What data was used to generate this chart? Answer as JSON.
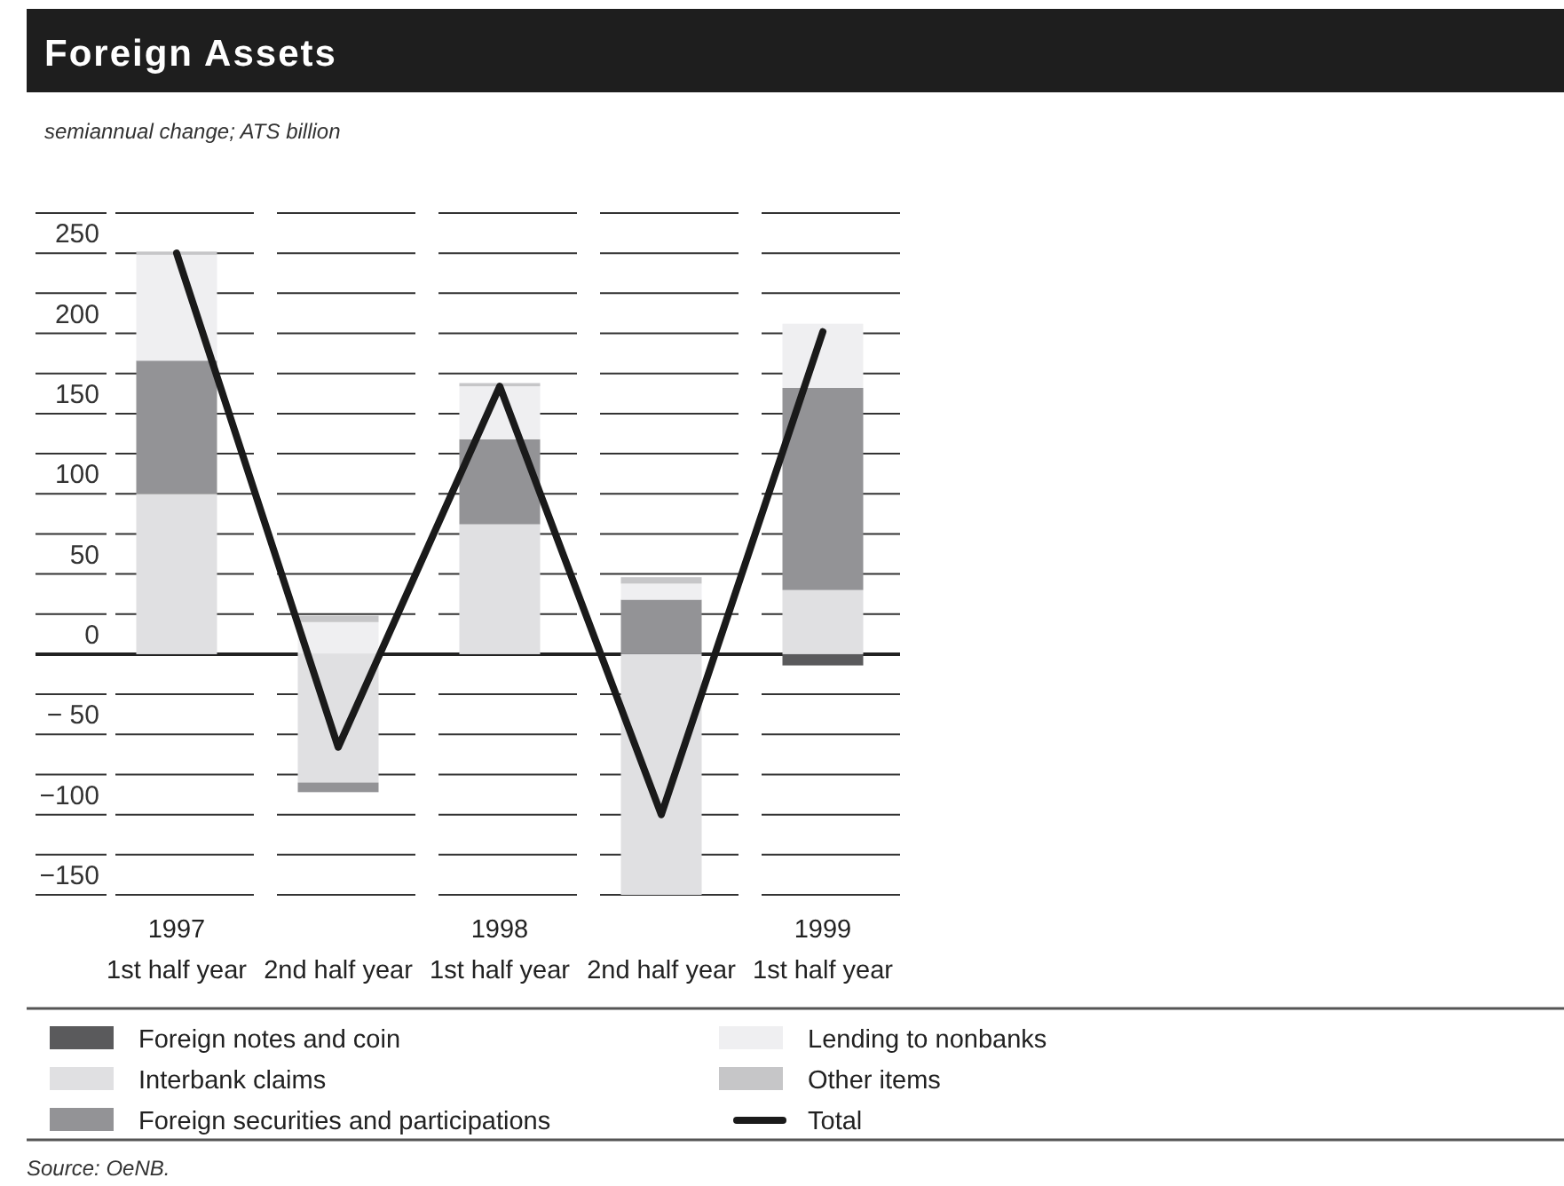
{
  "chart_data": {
    "type": "bar",
    "title": "Foreign Assets",
    "subtitle": "semiannual change; ATS billion",
    "categories": [
      "1997\n1st half year",
      "\n2nd half year",
      "1998\n1st half year",
      "\n2nd half year",
      "1999\n1st half year"
    ],
    "stacked": true,
    "series": [
      {
        "name": "Foreign notes and coin",
        "color": "#5a5a5c",
        "values": [
          null,
          null,
          null,
          null,
          -7
        ]
      },
      {
        "name": "Interbank claims",
        "color": "#e0e0e2",
        "values": [
          100,
          -80,
          81,
          -150,
          40
        ]
      },
      {
        "name": "Foreign securities and participations",
        "color": "#939396",
        "values": [
          83,
          -6,
          53,
          34,
          126
        ]
      },
      {
        "name": "Lending to nonbanks",
        "color": "#efeff1",
        "values": [
          66,
          20,
          33,
          10,
          40
        ]
      },
      {
        "name": "Other items",
        "color": "#c6c6c8",
        "values": [
          2,
          4,
          2,
          4,
          null
        ]
      },
      {
        "name": "Total",
        "type": "line",
        "color": "#1a1a1a",
        "values": [
          250,
          -58,
          167,
          -100,
          201
        ]
      }
    ],
    "ylim": [
      -150,
      275
    ],
    "yticks": [
      {
        "value": -150,
        "label": "−150"
      },
      {
        "value": -125,
        "label": null
      },
      {
        "value": -100,
        "label": "−100"
      },
      {
        "value": -75,
        "label": null
      },
      {
        "value": -50,
        "label": "− 50"
      },
      {
        "value": -25,
        "label": null
      },
      0,
      {
        "value": 25,
        "label": null
      },
      50,
      {
        "value": 75,
        "label": null
      },
      100,
      {
        "value": 125,
        "label": null
      },
      150,
      {
        "value": 175,
        "label": null
      },
      200,
      {
        "value": 225,
        "label": null
      },
      250,
      {
        "value": 275,
        "label": null
      }
    ],
    "grid": "y",
    "legend": "bottom",
    "annotations": [
      "Source: OeNB."
    ]
  }
}
